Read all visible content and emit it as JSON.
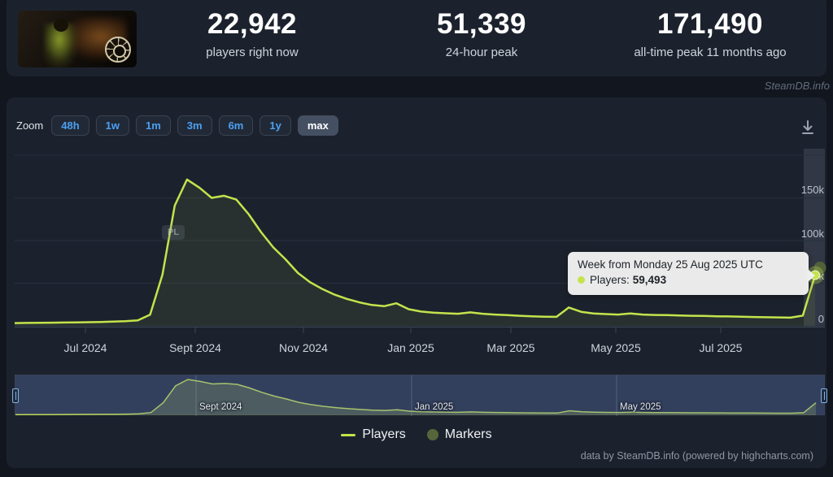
{
  "header": {
    "stats": [
      {
        "value": "22,942",
        "label": "players right now"
      },
      {
        "value": "51,339",
        "label": "24-hour peak"
      },
      {
        "value": "171,490",
        "label": "all-time peak 11 months ago"
      }
    ]
  },
  "watermark": "SteamDB.info",
  "toolbar": {
    "zoom_label": "Zoom",
    "ranges": [
      "48h",
      "1w",
      "1m",
      "3m",
      "6m",
      "1y",
      "max"
    ],
    "selected_range": "max"
  },
  "chart_data": {
    "type": "line",
    "series": [
      {
        "name": "Players",
        "color": "#c5e34c",
        "interval": "weekly",
        "x_start": "2024-05-27",
        "x_end": "2025-08-25",
        "values": [
          3200,
          3400,
          3500,
          3700,
          3900,
          4100,
          4300,
          4600,
          5000,
          5400,
          6500,
          13000,
          60000,
          141000,
          171490,
          162000,
          150000,
          152500,
          148000,
          131000,
          110000,
          92000,
          78000,
          62000,
          51000,
          43000,
          36500,
          31500,
          27500,
          24500,
          23000,
          26500,
          19500,
          16800,
          15500,
          14800,
          14200,
          15800,
          14200,
          13200,
          12600,
          11800,
          11200,
          10800,
          10600,
          21500,
          16500,
          14500,
          13800,
          13200,
          14500,
          13200,
          12800,
          12600,
          12200,
          11800,
          11600,
          11200,
          11000,
          10700,
          10400,
          10100,
          9900,
          9600,
          12000,
          59493
        ]
      },
      {
        "name": "Markers",
        "color": "#57663a",
        "values": []
      }
    ],
    "xticks": [
      "Jul 2024",
      "Sept 2024",
      "Nov 2024",
      "Jan 2025",
      "Mar 2025",
      "May 2025",
      "Jul 2025"
    ],
    "yticks": [
      "150k",
      "100k",
      "50k",
      "0"
    ],
    "ylim": [
      0,
      200000
    ],
    "grid": true,
    "legend_position": "bottom",
    "annotation_badge": "PL"
  },
  "tooltip": {
    "title": "Week from Monday 25 Aug 2025 UTC",
    "label": "Players:",
    "value": "59,493"
  },
  "navigator": {
    "labels": [
      "Sept 2024",
      "Jan 2025",
      "May 2025"
    ]
  },
  "legend": [
    {
      "label": "Players"
    },
    {
      "label": "Markers"
    }
  ],
  "footer": "data by SteamDB.info (powered by highcharts.com)"
}
